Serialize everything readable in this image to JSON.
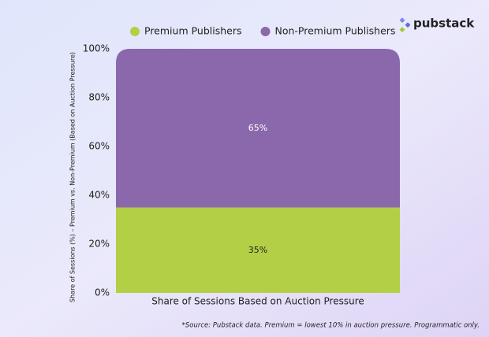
{
  "logo": {
    "text": "pubstack"
  },
  "chart_data": {
    "type": "stacked_bar",
    "y_label": "Share of Sessions (%) – Premium vs. Non-Premium (Based on Auction Pressure)",
    "categories": [
      "Share of Sessions Based on Auction Pressure"
    ],
    "series": [
      {
        "name": "Premium Publishers",
        "color": "#b3cf45",
        "values": [
          35
        ],
        "value_labels": [
          "35%"
        ]
      },
      {
        "name": "Non-Premium Publishers",
        "color": "#8b68ac",
        "values": [
          65
        ],
        "value_labels": [
          "65%"
        ]
      }
    ],
    "ylim": [
      0,
      100
    ],
    "yticks": [
      {
        "value": 0,
        "label": "0%"
      },
      {
        "value": 20,
        "label": "20%"
      },
      {
        "value": 40,
        "label": "40%"
      },
      {
        "value": 60,
        "label": "60%"
      },
      {
        "value": 80,
        "label": "80%"
      },
      {
        "value": 100,
        "label": "100%"
      }
    ],
    "note": "*Source: Pubstack data. Premium = lowest 10% in auction pressure. Programmatic only."
  }
}
